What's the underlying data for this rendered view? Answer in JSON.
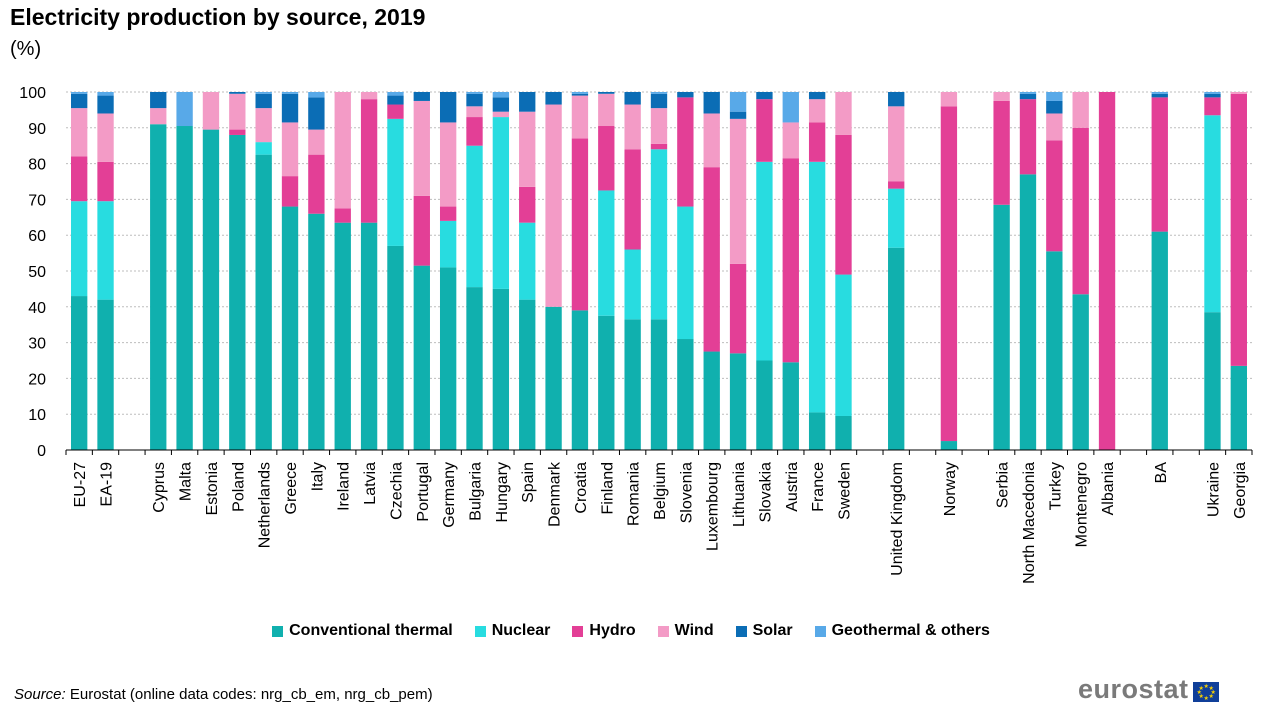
{
  "chart_data": {
    "type": "bar",
    "stacked": true,
    "title": "Electricity production by source, 2019",
    "subtitle": "(%)",
    "ylim": [
      0,
      100
    ],
    "yticks": [
      0,
      10,
      20,
      30,
      40,
      50,
      60,
      70,
      80,
      90,
      100
    ],
    "grid": true,
    "legend_position": "bottom",
    "categories": [
      "EU-27",
      "EA-19",
      "",
      "Cyprus",
      "Malta",
      "Estonia",
      "Poland",
      "Netherlands",
      "Greece",
      "Italy",
      "Ireland",
      "Latvia",
      "Czechia",
      "Portugal",
      "Germany",
      "Bulgaria",
      "Hungary",
      "Spain",
      "Denmark",
      "Croatia",
      "Finland",
      "Romania",
      "Belgium",
      "Slovenia",
      "Luxembourg",
      "Lithuania",
      "Slovakia",
      "Austria",
      "France",
      "Sweden",
      "",
      "United Kingdom",
      "",
      "Norway",
      "",
      "Serbia",
      "North Macedonia",
      "Turkey",
      "Montenegro",
      "Albania",
      "",
      "BA",
      "",
      "Ukraine",
      "Georgia"
    ],
    "series": [
      {
        "name": "Conventional thermal",
        "color": "#10b0ae",
        "values": [
          43,
          42,
          null,
          91,
          90.5,
          89.5,
          88,
          82.5,
          68,
          66,
          63.5,
          63.5,
          57,
          51.5,
          51,
          45.5,
          45,
          42,
          40,
          39,
          37.5,
          36.5,
          36.5,
          31,
          27.5,
          27,
          25,
          24.5,
          10.5,
          9.5,
          null,
          56.5,
          null,
          2.5,
          null,
          68.5,
          77,
          55.5,
          43.5,
          0,
          null,
          61,
          null,
          38.5,
          23.5
        ]
      },
      {
        "name": "Nuclear",
        "color": "#28dce0",
        "values": [
          26.5,
          27.5,
          null,
          0,
          0,
          0,
          0,
          3.5,
          0,
          0,
          0,
          0,
          35.5,
          0,
          13,
          39.5,
          48,
          21.5,
          0,
          0,
          35,
          19.5,
          47.5,
          37,
          0,
          0,
          55.5,
          0,
          70,
          39.5,
          null,
          16.5,
          null,
          0,
          null,
          0,
          0,
          0,
          0,
          0,
          null,
          0,
          null,
          55,
          0
        ]
      },
      {
        "name": "Hydro",
        "color": "#e33f96",
        "values": [
          12.5,
          11,
          null,
          0,
          0,
          0,
          1.5,
          0,
          8.5,
          16.5,
          4,
          34.5,
          4,
          19.5,
          4,
          8,
          0,
          10,
          0,
          48,
          18,
          28,
          1.5,
          30.5,
          51.5,
          25,
          17.5,
          57,
          11,
          39,
          null,
          2,
          null,
          93.5,
          null,
          29,
          21,
          31,
          46.5,
          100,
          null,
          37.5,
          null,
          5,
          76
        ]
      },
      {
        "name": "Wind",
        "color": "#f39bc6",
        "values": [
          13.5,
          13.5,
          null,
          4.5,
          0,
          10.5,
          10,
          9.5,
          15,
          7,
          32.5,
          2,
          0,
          26.5,
          23.5,
          3,
          1.5,
          21,
          56.5,
          12,
          9,
          12.5,
          10,
          0,
          15,
          40.5,
          0,
          10,
          6.5,
          12,
          null,
          21,
          null,
          4,
          null,
          2.5,
          0,
          7.5,
          10,
          0,
          null,
          0,
          null,
          0,
          0.5
        ]
      },
      {
        "name": "Solar",
        "color": "#0b6db5",
        "values": [
          4,
          5,
          null,
          4.5,
          0,
          0,
          0.5,
          4,
          8,
          9,
          0,
          0,
          2.5,
          2.5,
          8.5,
          3.5,
          4,
          5.5,
          3.5,
          0.5,
          0.5,
          3.5,
          4,
          1.5,
          6,
          2,
          2,
          0,
          2,
          0,
          null,
          4,
          null,
          0,
          null,
          0,
          1.5,
          3.5,
          0,
          0,
          null,
          1,
          null,
          1,
          0
        ]
      },
      {
        "name": "Geothermal & others",
        "color": "#58a9e8",
        "values": [
          0.5,
          1,
          null,
          0,
          9.5,
          0,
          0,
          0.5,
          0.5,
          1.5,
          0,
          0,
          1,
          0,
          0,
          0.5,
          1.5,
          0,
          0,
          0.5,
          0,
          0,
          0.5,
          0,
          0,
          5.5,
          0,
          8.5,
          0,
          0,
          null,
          0,
          null,
          0,
          null,
          0,
          0.5,
          2.5,
          0,
          0,
          null,
          0.5,
          null,
          0.5,
          0
        ]
      }
    ]
  },
  "source": {
    "label": "Source:",
    "text": " Eurostat (online data codes: nrg_cb_em, nrg_cb_pem)"
  },
  "logo": {
    "text": "eurostat"
  }
}
